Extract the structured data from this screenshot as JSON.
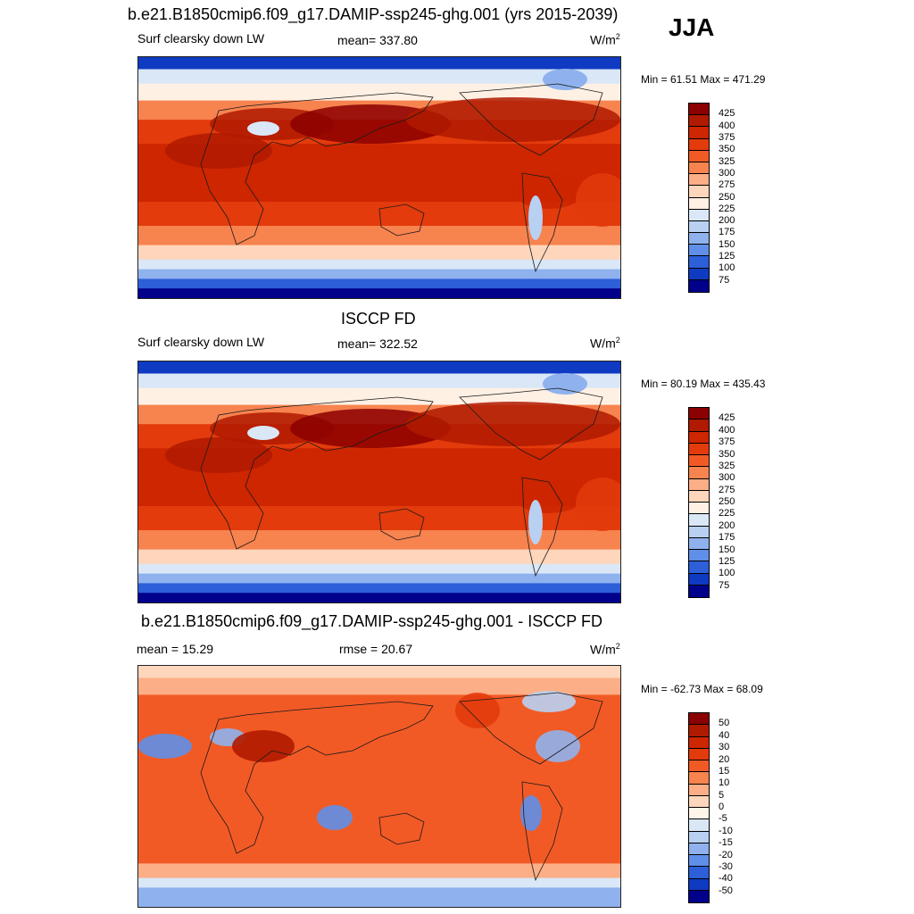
{
  "season": "JJA",
  "units_label": "W/m",
  "units_sup": "2",
  "panels": [
    {
      "id": "model",
      "title": "b.e21.B1850cmip6.f09_g17.DAMIP-ssp245-ghg.001 (yrs 2015-2039)",
      "left_label": "Surf clearsky down LW",
      "center_label": "mean= 337.80",
      "range_text": "Min =  61.51 Max = 471.29",
      "palette": "absolute",
      "field_shift": 1.0
    },
    {
      "id": "obs",
      "title": "ISCCP FD",
      "left_label": "Surf clearsky down LW",
      "center_label": "mean= 322.52",
      "range_text": "Min =  80.19 Max = 435.43",
      "palette": "absolute",
      "field_shift": 0.92
    },
    {
      "id": "diff",
      "title": "b.e21.B1850cmip6.f09_g17.DAMIP-ssp245-ghg.001 - ISCCP FD",
      "left_label": "mean =  15.29",
      "center_label": "rmse =  20.67",
      "range_text": "Min = -62.73 Max =  68.09",
      "palette": "difference",
      "field_shift": 0
    }
  ],
  "colorbars": {
    "absolute": {
      "levels": [
        "425",
        "400",
        "375",
        "350",
        "325",
        "300",
        "275",
        "250",
        "225",
        "200",
        "175",
        "150",
        "125",
        "100",
        "75"
      ],
      "colors": [
        "#8b0000",
        "#b01a00",
        "#cd2600",
        "#e33b0c",
        "#f25a25",
        "#f7834f",
        "#fcae86",
        "#fdd6bc",
        "#fff0e4",
        "#d9e7f7",
        "#b8d0f2",
        "#8fb2ee",
        "#5f8fe8",
        "#2d5fd9",
        "#0f3ac2",
        "#00008b"
      ]
    },
    "difference": {
      "levels": [
        "50",
        "40",
        "30",
        "20",
        "15",
        "10",
        "5",
        "0",
        "-5",
        "-10",
        "-15",
        "-20",
        "-30",
        "-40",
        "-50"
      ],
      "colors": [
        "#8b0000",
        "#b01a00",
        "#cd2600",
        "#e33b0c",
        "#f25a25",
        "#f7834f",
        "#fcae86",
        "#fdd6bc",
        "#fff4ea",
        "#d9e7f7",
        "#b8d0f2",
        "#8fb2ee",
        "#5f8fe8",
        "#2d5fd9",
        "#0f3ac2",
        "#00008b"
      ]
    }
  }
}
